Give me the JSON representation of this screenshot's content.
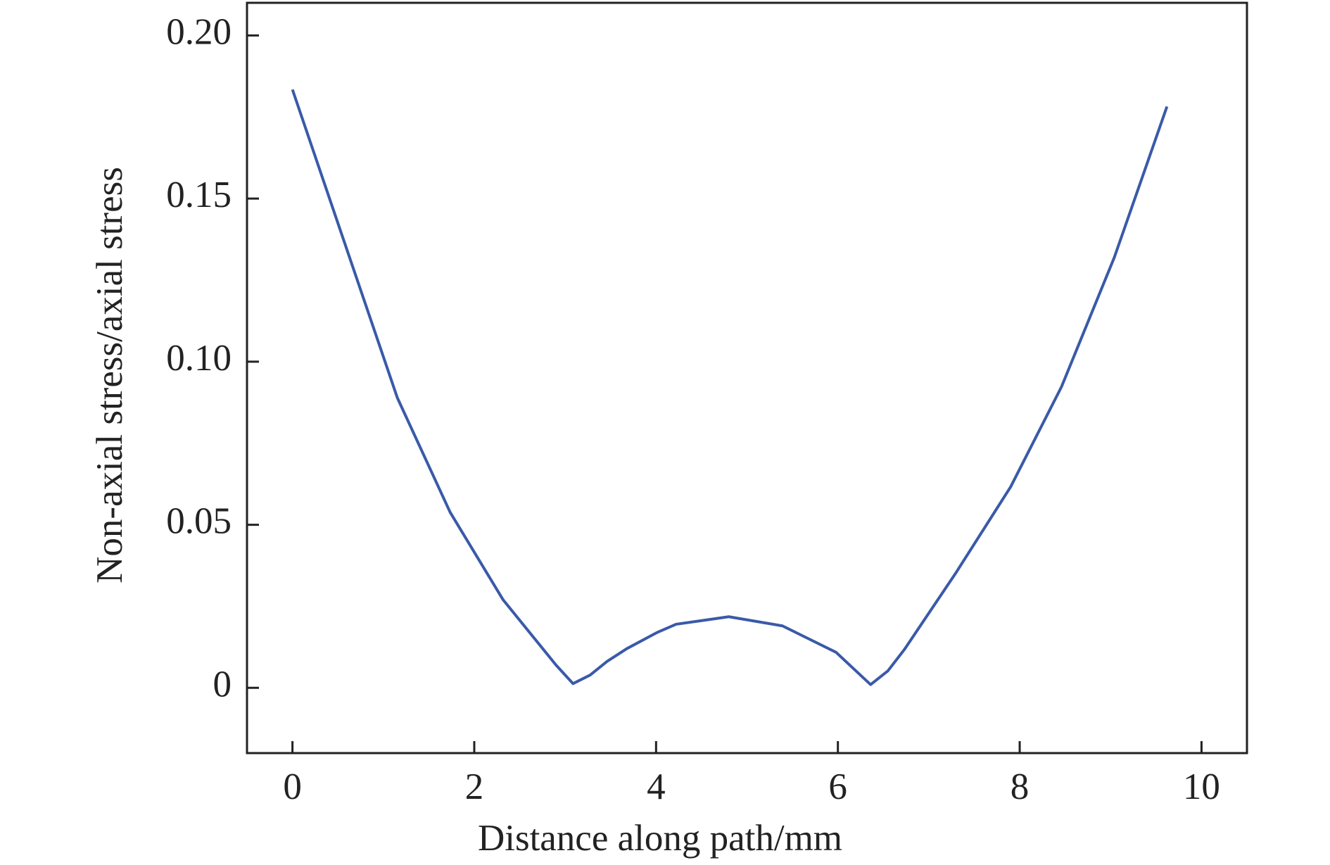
{
  "chart_data": {
    "type": "line",
    "x_label": "Distance along path/mm",
    "y_label": "Non-axial stress/axial stress",
    "x": [
      0,
      1.154,
      1.735,
      2.317,
      2.899,
      3.086,
      3.274,
      3.46,
      3.677,
      4.006,
      4.22,
      4.8,
      5.39,
      5.98,
      6.16,
      6.36,
      6.55,
      6.73,
      7.29,
      7.9,
      8.46,
      9.04,
      9.62
    ],
    "series": [
      {
        "name": "Non-axial stress/axial stress",
        "color": "#3a5aa8",
        "values": [
          0.1834,
          0.0889,
          0.0538,
          0.027,
          0.007,
          0.0013,
          0.0039,
          0.0081,
          0.012,
          0.0169,
          0.0195,
          0.0218,
          0.019,
          0.0109,
          0.0062,
          0.001,
          0.0052,
          0.0117,
          0.0349,
          0.0616,
          0.0923,
          0.1319,
          0.1782
        ]
      }
    ],
    "xlim": [
      -0.5,
      10.5
    ],
    "xticks": [
      0,
      2,
      4,
      6,
      8,
      10
    ],
    "ylim": [
      -0.02,
      0.21
    ],
    "yticks": [
      0,
      0.05,
      {
        "value": 0.1,
        "label": "0.10"
      },
      0.15,
      {
        "value": 0.2,
        "label": "0.20"
      }
    ],
    "grid": false
  }
}
